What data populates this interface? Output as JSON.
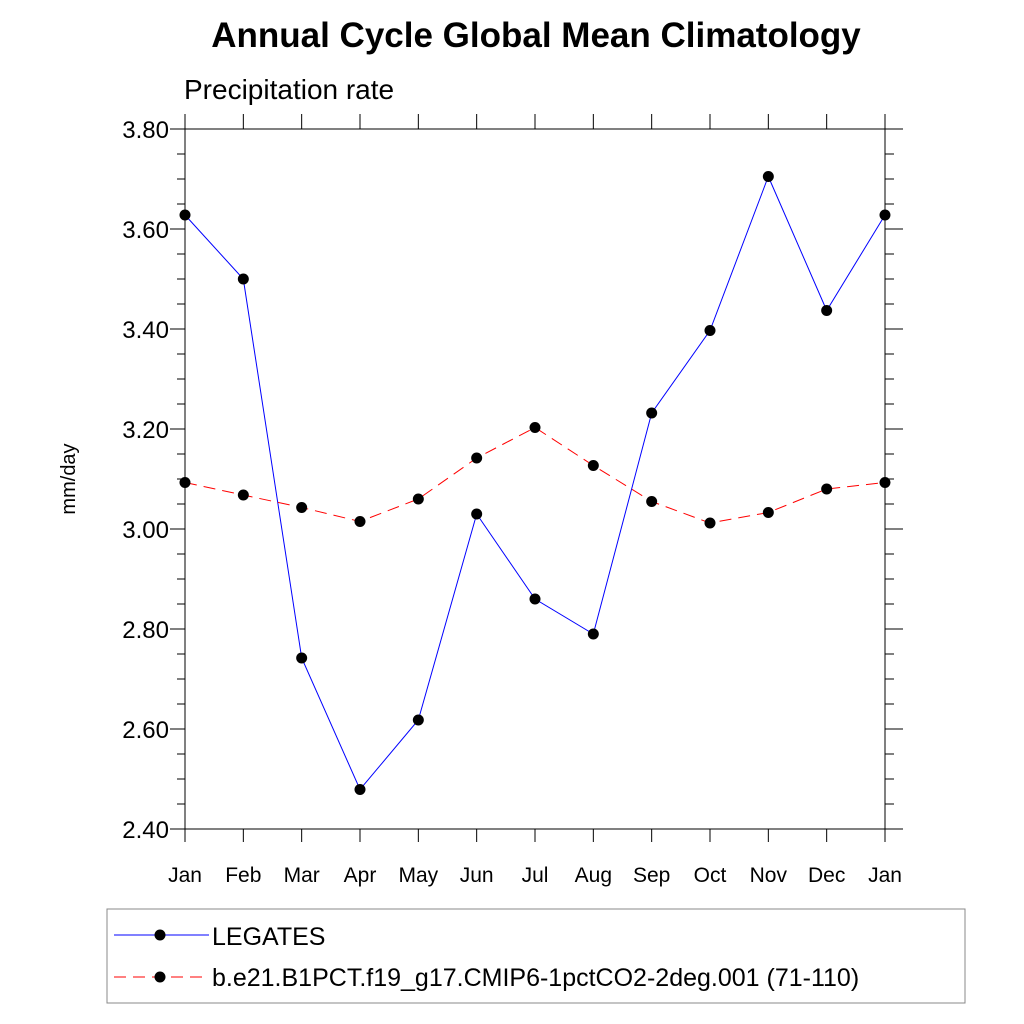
{
  "chart_data": {
    "type": "line",
    "title": "Annual Cycle Global Mean Climatology",
    "subtitle": "Precipitation rate",
    "xlabel": "",
    "ylabel": "mm/day",
    "categories": [
      "Jan",
      "Feb",
      "Mar",
      "Apr",
      "May",
      "Jun",
      "Jul",
      "Aug",
      "Sep",
      "Oct",
      "Nov",
      "Dec",
      "Jan"
    ],
    "ylim": [
      2.4,
      3.8
    ],
    "yticks": [
      "2.40",
      "2.60",
      "2.80",
      "3.00",
      "3.20",
      "3.40",
      "3.60",
      "3.80"
    ],
    "ytick_values": [
      2.4,
      2.6,
      2.8,
      3.0,
      3.2,
      3.4,
      3.6,
      3.8
    ],
    "grid": false,
    "legend_position": "bottom",
    "series": [
      {
        "name": "LEGATES",
        "color": "#0000ff",
        "style": "solid",
        "marker": "filled-circle",
        "values": [
          3.628,
          3.5,
          2.742,
          2.479,
          2.618,
          3.03,
          2.86,
          2.79,
          3.232,
          3.397,
          3.705,
          3.437,
          3.628
        ]
      },
      {
        "name": "b.e21.B1PCT.f19_g17.CMIP6-1pctCO2-2deg.001 (71-110)",
        "color": "#ff0000",
        "style": "dashed",
        "marker": "filled-circle",
        "values": [
          3.093,
          3.068,
          3.043,
          3.015,
          3.06,
          3.142,
          3.203,
          3.127,
          3.055,
          3.012,
          3.033,
          3.08,
          3.093
        ]
      }
    ]
  }
}
